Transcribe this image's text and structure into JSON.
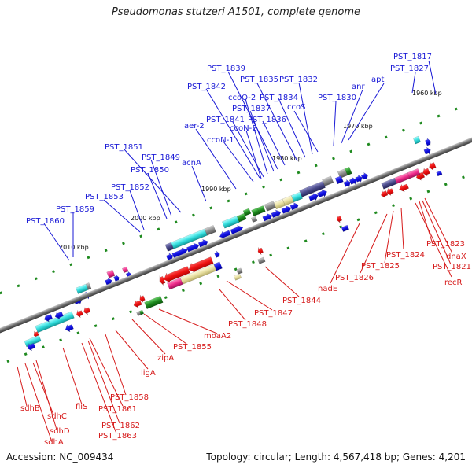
{
  "title": "Pseudomonas stutzeri A1501, complete genome",
  "accession": "Accession: NC_009434",
  "summary": "Topology: circular; Length: 4,567,418 bp; Genes: 4,201",
  "kbp_ticks": [
    "1960 kbp",
    "1970 kbp",
    "1980 kbp",
    "1990 kbp",
    "2000 kbp",
    "2010 kbp"
  ],
  "top_labels": [
    "PST_1817",
    "PST_1827",
    "apt",
    "anr",
    "PST_1830",
    "ccoS",
    "PST_1832",
    "PST_1834",
    "PST_1835",
    "PST_1839",
    "ccoQ-2",
    "PST_1837",
    "PST_1836",
    "PST_1842",
    "PST_1841",
    "ccoN-2",
    "ccoN-1",
    "aer-2",
    "acnA",
    "PST_1851",
    "PST_1849",
    "PST_1850",
    "PST_1852",
    "PST_1853",
    "PST_1859",
    "PST_1860"
  ],
  "bottom_labels": [
    "dnaX",
    "PST_1823",
    "PST_1821",
    "recR",
    "PST_1824",
    "PST_1825",
    "PST_1826",
    "nadE",
    "PST_1844",
    "PST_1847",
    "PST_1848",
    "moaA2",
    "PST_1855",
    "zipA",
    "ligA",
    "PST_1858",
    "PST_1861",
    "fliS",
    "PST_1862",
    "PST_1863",
    "sdhB",
    "sdhC",
    "sdhD",
    "sdhA"
  ],
  "colors": {
    "top_label": "#1a1ad6",
    "bottom_label": "#d61a1a",
    "backbone": "#6e6e6e",
    "blue": "#1010e0",
    "red": "#ee1111",
    "cyan": "#33dddd",
    "green": "#1f8a1f",
    "pink": "#ee2a8a",
    "khaki": "#e8e0a0",
    "navy": "#4a4a8a",
    "grey": "#8a8a8a"
  }
}
